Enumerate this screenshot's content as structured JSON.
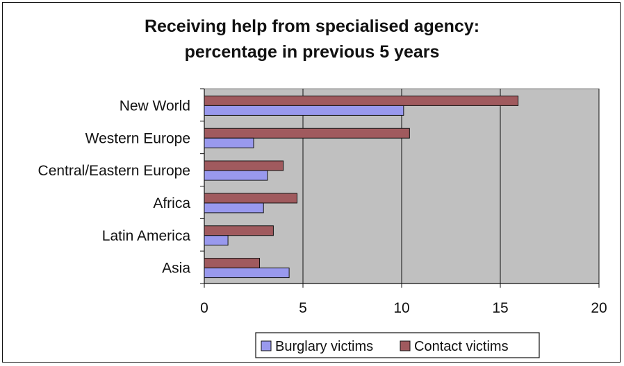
{
  "chart_data": {
    "type": "bar",
    "orientation": "horizontal",
    "title": "Receiving help from specialised agency:",
    "subtitle": "percentage in previous 5 years",
    "categories": [
      "New World",
      "Western Europe",
      "Central/Eastern Europe",
      "Africa",
      "Latin America",
      "Asia"
    ],
    "series": [
      {
        "name": "Contact victims",
        "color": "#a05a5e",
        "values": [
          15.9,
          10.4,
          4.0,
          4.7,
          3.5,
          2.8
        ]
      },
      {
        "name": "Burglary victims",
        "color": "#9999ee",
        "values": [
          10.1,
          2.5,
          3.2,
          3.0,
          1.2,
          4.3
        ]
      }
    ],
    "xlim": [
      0,
      20
    ],
    "xticks": [
      0,
      5,
      10,
      15,
      20
    ],
    "grid": true,
    "plot_background": "#c0c0c0",
    "legend": {
      "position": "bottom",
      "entries": [
        "Burglary victims",
        "Contact victims"
      ]
    }
  }
}
